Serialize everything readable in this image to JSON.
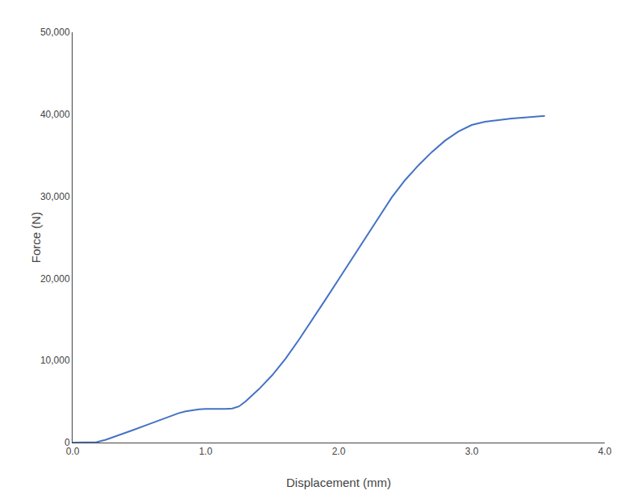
{
  "chart_data": {
    "type": "line",
    "xlabel": "Displacement (mm)",
    "ylabel": "Force (N)",
    "color": "#4472C4",
    "grid": false,
    "xlim": [
      0.0,
      4.0
    ],
    "ylim": [
      0,
      50000
    ],
    "xticks": [
      {
        "value": 0.0,
        "label": "0.0"
      },
      {
        "value": 1.0,
        "label": "1.0"
      },
      {
        "value": 2.0,
        "label": "2.0"
      },
      {
        "value": 3.0,
        "label": "3.0"
      },
      {
        "value": 4.0,
        "label": "4.0"
      }
    ],
    "yticks": [
      0,
      {
        "value": 10000,
        "label": "10,000"
      },
      {
        "value": 20000,
        "label": "20,000"
      },
      {
        "value": 30000,
        "label": "30,000"
      },
      {
        "value": 40000,
        "label": "40,000"
      },
      {
        "value": 50000,
        "label": "50,000"
      }
    ],
    "x": [
      0.0,
      0.05,
      0.1,
      0.15,
      0.18,
      0.25,
      0.35,
      0.45,
      0.55,
      0.65,
      0.75,
      0.8,
      0.85,
      0.9,
      0.95,
      1.0,
      1.05,
      1.1,
      1.15,
      1.2,
      1.25,
      1.3,
      1.4,
      1.5,
      1.6,
      1.7,
      1.8,
      1.9,
      2.0,
      2.1,
      2.2,
      2.3,
      2.4,
      2.5,
      2.6,
      2.7,
      2.8,
      2.9,
      3.0,
      3.1,
      3.2,
      3.3,
      3.4,
      3.5,
      3.55
    ],
    "values": [
      0,
      0,
      0,
      0,
      50,
      350,
      900,
      1500,
      2100,
      2700,
      3300,
      3600,
      3800,
      3950,
      4050,
      4100,
      4100,
      4050,
      4100,
      4150,
      4400,
      5000,
      6500,
      8200,
      10200,
      12500,
      14900,
      17400,
      19900,
      22400,
      24900,
      27400,
      29900,
      32000,
      33800,
      35400,
      36800,
      37900,
      38700,
      39100,
      39300,
      39500,
      39600,
      39700,
      39800
    ]
  }
}
